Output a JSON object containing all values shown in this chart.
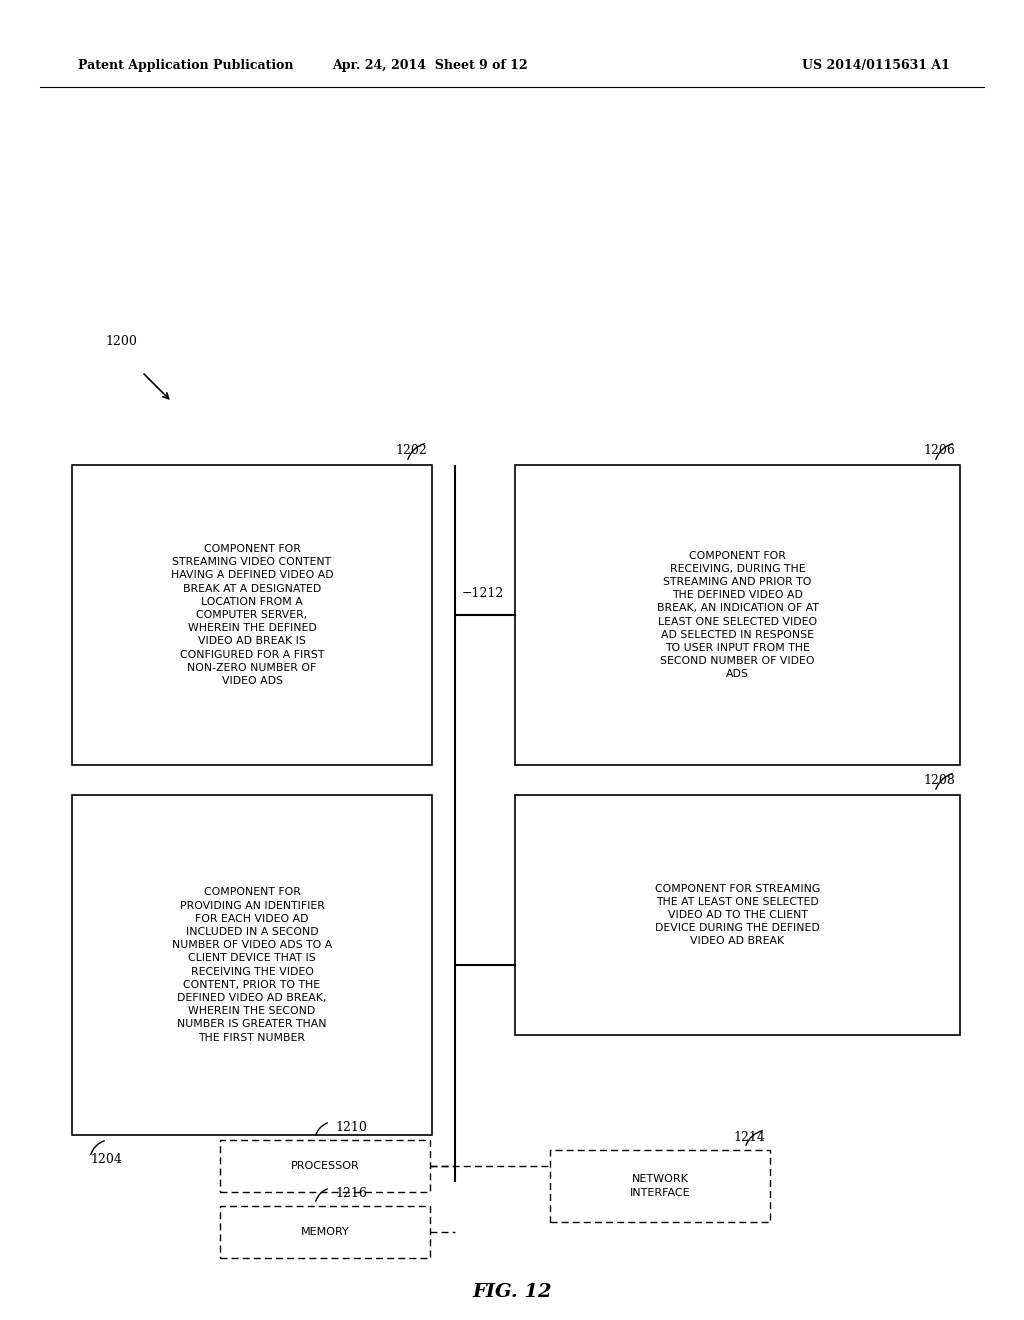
{
  "bg_color": "#ffffff",
  "header_left": "Patent Application Publication",
  "header_mid": "Apr. 24, 2014  Sheet 9 of 12",
  "header_right": "US 2014/0115631 A1",
  "fig_label": "FIG. 12",
  "text_1202": "COMPONENT FOR\nSTREAMING VIDEO CONTENT\nHAVING A DEFINED VIDEO AD\nBREAK AT A DESIGNATED\nLOCATION FROM A\nCOMPUTER SERVER,\nWHEREIN THE DEFINED\nVIDEO AD BREAK IS\nCONFIGURED FOR A FIRST\nNON-ZERO NUMBER OF\nVIDEO ADS",
  "text_1204": "COMPONENT FOR\nPROVIDING AN IDENTIFIER\nFOR EACH VIDEO AD\nINCLUDED IN A SECOND\nNUMBER OF VIDEO ADS TO A\nCLIENT DEVICE THAT IS\nRECEIVING THE VIDEO\nCONTENT, PRIOR TO THE\nDEFINED VIDEO AD BREAK,\nWHEREIN THE SECOND\nNUMBER IS GREATER THAN\nTHE FIRST NUMBER",
  "text_1206": "COMPONENT FOR\nRECEIVING, DURING THE\nSTREAMING AND PRIOR TO\nTHE DEFINED VIDEO AD\nBREAK, AN INDICATION OF AT\nLEAST ONE SELECTED VIDEO\nAD SELECTED IN RESPONSE\nTO USER INPUT FROM THE\nSECOND NUMBER OF VIDEO\nADS",
  "text_1208": "COMPONENT FOR STREAMING\nTHE AT LEAST ONE SELECTED\nVIDEO AD TO THE CLIENT\nDEVICE DURING THE DEFINED\nVIDEO AD BREAK",
  "text_1210": "PROCESSOR",
  "text_1214": "NETWORK\nINTERFACE",
  "text_1216": "MEMORY"
}
